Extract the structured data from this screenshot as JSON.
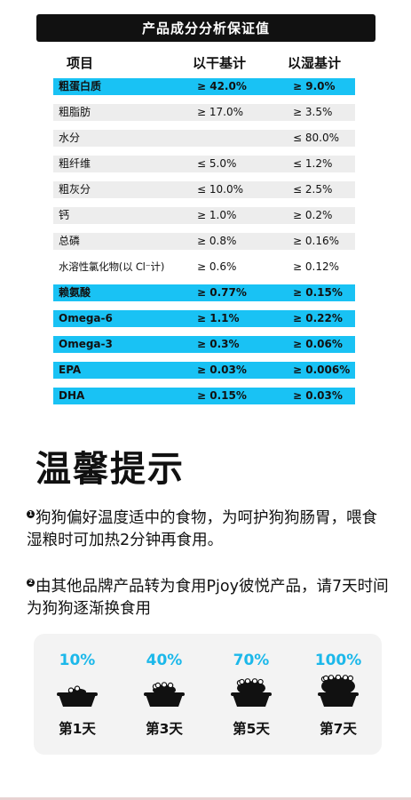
{
  "header": {
    "title": "产品成分分析保证值"
  },
  "columns": {
    "item": "项目",
    "dry": "以干基计",
    "wet": "以湿基计"
  },
  "rows": [
    {
      "name": "粗蛋白质",
      "dry": "≥ 42.0%",
      "wet": "≥ 9.0%",
      "hl": "blue"
    },
    {
      "name": "粗脂肪",
      "dry": "≥ 17.0%",
      "wet": "≥ 3.5%",
      "hl": "gray"
    },
    {
      "name": "水分",
      "dry": "",
      "wet": "≤ 80.0%",
      "hl": "gray"
    },
    {
      "name": "粗纤维",
      "dry": "≤ 5.0%",
      "wet": "≤ 1.2%",
      "hl": "gray"
    },
    {
      "name": "粗灰分",
      "dry": "≤ 10.0%",
      "wet": "≤ 2.5%",
      "hl": "gray"
    },
    {
      "name": "钙",
      "dry": "≥ 1.0%",
      "wet": "≥ 0.2%",
      "hl": "gray"
    },
    {
      "name": "总磷",
      "dry": "≥ 0.8%",
      "wet": "≥ 0.16%",
      "hl": "gray"
    },
    {
      "name": "水溶性氯化物(以 Cl⁻计)",
      "dry": "≥ 0.6%",
      "wet": "≥ 0.12%",
      "hl": "white"
    },
    {
      "name": "赖氨酸",
      "dry": "≥ 0.77%",
      "wet": "≥ 0.15%",
      "hl": "blue"
    },
    {
      "name": "Omega-6",
      "dry": "≥ 1.1%",
      "wet": "≥ 0.22%",
      "hl": "blue"
    },
    {
      "name": "Omega-3",
      "dry": "≥ 0.3%",
      "wet": "≥ 0.06%",
      "hl": "blue"
    },
    {
      "name": "EPA",
      "dry": "≥ 0.03%",
      "wet": "≥ 0.006%",
      "hl": "blue"
    },
    {
      "name": "DHA",
      "dry": "≥ 0.15%",
      "wet": "≥ 0.03%",
      "hl": "blue"
    }
  ],
  "tips": {
    "title": "温馨提示",
    "items": [
      {
        "num": "1",
        "text": "狗狗偏好温度适中的食物，为呵护狗狗肠胃，喂食湿粮时可加热2分钟再食用。"
      },
      {
        "num": "2",
        "text": "由其他品牌产品转为食用Pjoy彼悦产品，请7天时间为狗狗逐渐换食用"
      }
    ]
  },
  "transition": {
    "steps": [
      {
        "percent": "10%",
        "day": "第1天",
        "level": 0.1
      },
      {
        "percent": "40%",
        "day": "第3天",
        "level": 0.4
      },
      {
        "percent": "70%",
        "day": "第5天",
        "level": 0.7
      },
      {
        "percent": "100%",
        "day": "第7天",
        "level": 1.0
      }
    ],
    "percent_color": "#1cb8ea"
  },
  "colors": {
    "highlight_blue": "#19c2f4",
    "row_gray": "#ededed",
    "header_bg": "#111111"
  }
}
